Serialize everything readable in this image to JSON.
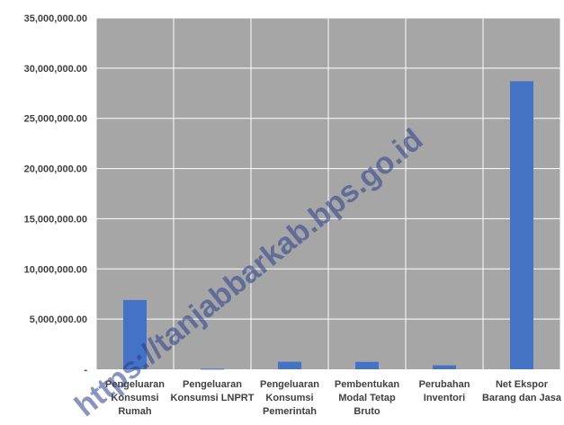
{
  "chart_data": {
    "type": "bar",
    "categories": [
      [
        "Pengeluaran",
        "Konsumsi",
        "Rumah"
      ],
      [
        "Pengeluaran",
        "Konsumsi LNPRT"
      ],
      [
        "Pengeluaran",
        "Konsumsi",
        "Pemerintah"
      ],
      [
        "Pembentukan",
        "Modal Tetap",
        "Bruto"
      ],
      [
        "Perubahan",
        "Inventori"
      ],
      [
        "Net Ekspor",
        "Barang dan Jasa"
      ]
    ],
    "values": [
      6900000,
      60000,
      750000,
      740000,
      400000,
      28700000
    ],
    "ylim": [
      0,
      35000000
    ],
    "ytick_values": [
      0,
      5000000,
      10000000,
      15000000,
      20000000,
      25000000,
      30000000,
      35000000
    ],
    "ytick_labels": [
      "-",
      "5,000,000.00",
      "10,000,000.00",
      "15,000,000.00",
      "20,000,000.00",
      "25,000,000.00",
      "30,000,000.00",
      "35,000,000.00"
    ],
    "grid": true,
    "legend": "none",
    "title": "",
    "xlabel": "",
    "ylabel": "",
    "colors": {
      "bar": "#4472C4",
      "plot_bg": "#A6A6A6",
      "grid": "#FFFFFF"
    }
  },
  "watermark": {
    "text": "https://tanjabbarkab.bps.go.id"
  }
}
